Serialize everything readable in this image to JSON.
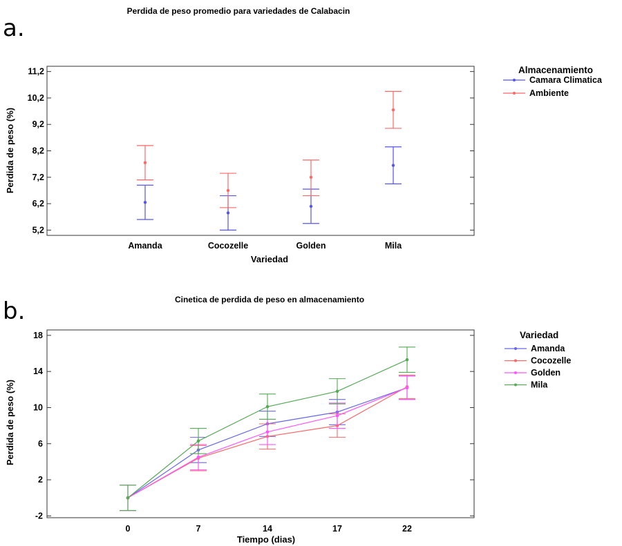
{
  "chart_data": [
    {
      "panel_letter": "a.",
      "type": "scatter",
      "title": "Perdida de peso promedio para variedades de Calabacin",
      "xlabel": "Variedad",
      "ylabel": "Perdida de peso (%)",
      "categories": [
        "Amanda",
        "Cocozelle",
        "Golden",
        "Mila"
      ],
      "y_ticks": [
        "5,2",
        "6,2",
        "7,2",
        "8,2",
        "9,2",
        "10,2",
        "11,2"
      ],
      "y_tick_values": [
        5.2,
        6.2,
        7.2,
        8.2,
        9.2,
        10.2,
        11.2
      ],
      "ylim": [
        5.0,
        11.4
      ],
      "grid": false,
      "legend": {
        "title": "Almacenamiento",
        "placement": "right"
      },
      "series": [
        {
          "name": "Camara Climatica",
          "color": "#5555ee",
          "values": [
            6.25,
            5.85,
            6.1,
            7.65
          ],
          "lower": [
            5.6,
            5.2,
            5.45,
            6.95
          ],
          "upper": [
            6.9,
            6.5,
            6.75,
            8.35
          ]
        },
        {
          "name": "Ambiente",
          "color": "#ff6666",
          "values": [
            7.75,
            6.7,
            7.2,
            9.75
          ],
          "lower": [
            7.1,
            6.05,
            6.5,
            9.05
          ],
          "upper": [
            8.4,
            7.35,
            7.85,
            10.45
          ]
        }
      ]
    },
    {
      "panel_letter": "b.",
      "type": "line",
      "title": "Cinetica de perdida de peso en almacenamiento",
      "xlabel": "Tiempo (dias)",
      "ylabel": "Perdida de peso (%)",
      "x": [
        0,
        7,
        14,
        17,
        22
      ],
      "x_ticks": [
        "0",
        "7",
        "14",
        "17",
        "22"
      ],
      "y_ticks": [
        "-2",
        "2",
        "6",
        "10",
        "14",
        "18"
      ],
      "y_tick_values": [
        -2,
        2,
        6,
        10,
        14,
        18
      ],
      "ylim": [
        -2.2,
        18.6
      ],
      "grid": false,
      "legend": {
        "title": "Variedad",
        "placement": "right"
      },
      "series": [
        {
          "name": "Amanda",
          "color": "#6666ee",
          "values": [
            0.0,
            5.3,
            8.2,
            9.5,
            12.2
          ],
          "lower": [
            -1.4,
            3.9,
            6.8,
            8.1,
            10.9
          ],
          "upper": [
            1.4,
            6.7,
            9.6,
            10.9,
            13.5
          ]
        },
        {
          "name": "Cocozelle",
          "color": "#ff6666",
          "values": [
            0.0,
            4.4,
            6.8,
            8.0,
            12.3
          ],
          "lower": [
            -1.4,
            3.0,
            5.4,
            6.7,
            11.0
          ],
          "upper": [
            1.4,
            5.8,
            8.2,
            9.3,
            13.6
          ]
        },
        {
          "name": "Golden",
          "color": "#ff55ff",
          "values": [
            0.0,
            4.5,
            7.3,
            9.1,
            12.2
          ],
          "lower": [
            -1.4,
            3.1,
            5.9,
            7.7,
            10.9
          ],
          "upper": [
            1.4,
            5.9,
            8.7,
            10.5,
            13.5
          ]
        },
        {
          "name": "Mila",
          "color": "#55aa55",
          "values": [
            0.0,
            6.3,
            10.1,
            11.8,
            15.3
          ],
          "lower": [
            -1.4,
            4.9,
            8.7,
            10.4,
            13.9
          ],
          "upper": [
            1.4,
            7.7,
            11.5,
            13.2,
            16.7
          ]
        }
      ]
    }
  ]
}
